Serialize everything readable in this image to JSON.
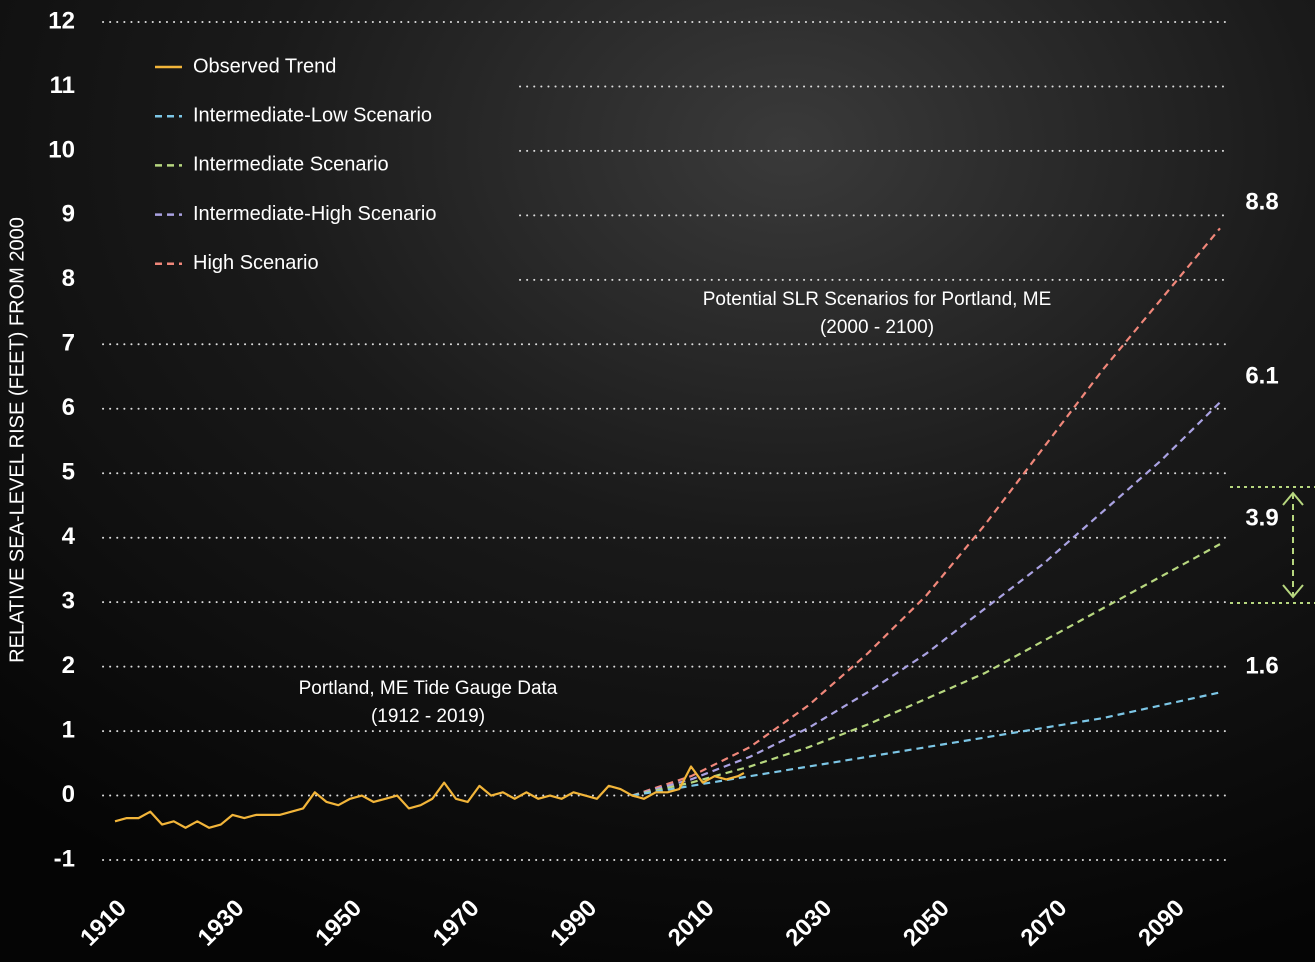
{
  "chart_data": {
    "type": "line",
    "y_label": "RELATIVE SEA-LEVEL RISE (FEET) FROM 2000",
    "annotations": [
      "Potential SLR Scenarios for Portland, ME",
      "(2000 - 2100)",
      "Portland, ME Tide Gauge Data",
      "(1912 - 2019)"
    ],
    "xlim": [
      1912,
      2100
    ],
    "xticks": [
      1910,
      1930,
      1950,
      1970,
      1990,
      2010,
      2030,
      2050,
      2070,
      2090
    ],
    "ylim": [
      -1,
      12
    ],
    "yticks": [
      -1,
      0,
      1,
      2,
      3,
      4,
      5,
      6,
      7,
      8,
      9,
      10,
      11,
      12
    ],
    "grid": true,
    "legend": "upper left",
    "series": [
      {
        "name": "Observed Trend",
        "color": "#f2b53a",
        "style": "solid",
        "x": [
          1912,
          1914,
          1916,
          1918,
          1920,
          1922,
          1924,
          1926,
          1928,
          1930,
          1932,
          1934,
          1936,
          1938,
          1940,
          1942,
          1944,
          1946,
          1948,
          1950,
          1952,
          1954,
          1956,
          1958,
          1960,
          1962,
          1964,
          1966,
          1968,
          1970,
          1972,
          1974,
          1976,
          1978,
          1980,
          1982,
          1984,
          1986,
          1988,
          1990,
          1992,
          1994,
          1996,
          1998,
          2000,
          2002,
          2004,
          2006,
          2008,
          2010,
          2012,
          2014,
          2016,
          2018,
          2019
        ],
        "values": [
          -0.4,
          -0.35,
          -0.35,
          -0.25,
          -0.45,
          -0.4,
          -0.5,
          -0.4,
          -0.5,
          -0.45,
          -0.3,
          -0.35,
          -0.3,
          -0.3,
          -0.3,
          -0.25,
          -0.2,
          0.05,
          -0.1,
          -0.15,
          -0.05,
          0,
          -0.1,
          -0.05,
          0,
          -0.2,
          -0.15,
          -0.05,
          0.2,
          -0.05,
          -0.1,
          0.15,
          0,
          0.05,
          -0.05,
          0.05,
          -0.05,
          0,
          -0.05,
          0.05,
          0,
          -0.05,
          0.15,
          0.1,
          0,
          -0.05,
          0.05,
          0.05,
          0.1,
          0.45,
          0.2,
          0.3,
          0.25,
          0.3,
          0.35
        ]
      },
      {
        "name": "Intermediate-Low Scenario",
        "color": "#7cc6e6",
        "style": "dashed",
        "x": [
          2000,
          2010,
          2020,
          2030,
          2040,
          2050,
          2060,
          2070,
          2080,
          2090,
          2100
        ],
        "values": [
          0,
          0.15,
          0.3,
          0.45,
          0.6,
          0.75,
          0.9,
          1.05,
          1.2,
          1.4,
          1.6
        ]
      },
      {
        "name": "Intermediate Scenario",
        "color": "#b7d77f",
        "style": "dashed",
        "x": [
          2000,
          2010,
          2020,
          2030,
          2040,
          2050,
          2060,
          2070,
          2080,
          2090,
          2100
        ],
        "values": [
          0,
          0.2,
          0.45,
          0.75,
          1.1,
          1.5,
          1.9,
          2.4,
          2.9,
          3.4,
          3.9
        ]
      },
      {
        "name": "Intermediate-High Scenario",
        "color": "#aaa2e2",
        "style": "dashed",
        "x": [
          2000,
          2010,
          2020,
          2030,
          2040,
          2050,
          2060,
          2070,
          2080,
          2090,
          2100
        ],
        "values": [
          0,
          0.25,
          0.6,
          1.05,
          1.6,
          2.2,
          2.9,
          3.6,
          4.4,
          5.2,
          6.1
        ]
      },
      {
        "name": "High Scenario",
        "color": "#f0877a",
        "style": "dashed",
        "x": [
          2000,
          2010,
          2020,
          2030,
          2040,
          2050,
          2060,
          2070,
          2080,
          2090,
          2100
        ],
        "values": [
          0,
          0.3,
          0.75,
          1.4,
          2.2,
          3.1,
          4.2,
          5.4,
          6.6,
          7.7,
          8.8
        ]
      }
    ]
  }
}
